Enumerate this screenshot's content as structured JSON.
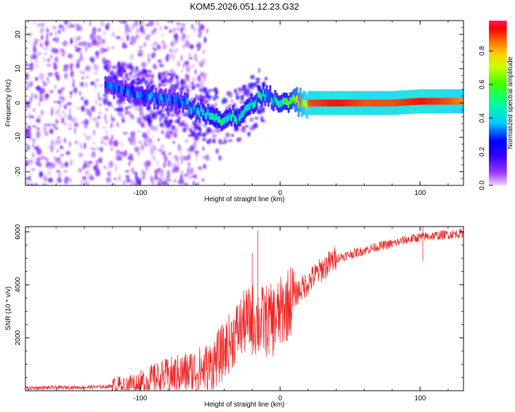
{
  "chart_data": [
    {
      "type": "heatmap",
      "title": "KOM5.2026.051.12.23.G32",
      "xlabel": "Height of straight line (km)",
      "ylabel": "Frequency (Hz)",
      "xlim": [
        -182,
        131
      ],
      "ylim": [
        -24,
        24
      ],
      "xticks": [
        -100,
        0,
        100
      ],
      "yticks": [
        -20,
        -10,
        0,
        10,
        20
      ],
      "colorbar": {
        "label": "Normalized spectral amplitude",
        "range": [
          0,
          0.98
        ],
        "ticks": [
          0.0,
          0.2,
          0.4,
          0.6,
          0.8
        ],
        "colormap": [
          "#ff00ff",
          "#3300ff",
          "#0000ff",
          "#00ffff",
          "#00ff00",
          "#ffff00",
          "#ff8800",
          "#ff0000"
        ]
      },
      "ridge": {
        "description": "dominant frequency track vs height",
        "x": [
          -125,
          -110,
          -95,
          -80,
          -70,
          -60,
          -50,
          -45,
          -40,
          -35,
          -30,
          -25,
          -20,
          -15,
          -10,
          -5,
          0,
          10,
          20,
          40,
          60,
          80,
          100,
          120,
          130
        ],
        "y": [
          5,
          4,
          2,
          1,
          0,
          -2,
          -4,
          -4,
          -5,
          -4,
          -4,
          -3,
          0,
          2,
          2,
          1,
          0,
          0.5,
          0,
          0,
          0,
          0,
          0.5,
          0.5,
          0.5
        ],
        "amplitude": [
          0.3,
          0.3,
          0.35,
          0.3,
          0.35,
          0.4,
          0.45,
          0.5,
          0.45,
          0.45,
          0.45,
          0.5,
          0.5,
          0.45,
          0.4,
          0.45,
          0.5,
          0.7,
          0.9,
          0.95,
          0.9,
          0.9,
          0.95,
          0.9,
          0.85
        ]
      }
    },
    {
      "type": "line",
      "xlabel": "Height of straight line (km)",
      "ylabel": "SNR (10 * v/v)",
      "xlim": [
        -182,
        131
      ],
      "ylim": [
        0,
        6200
      ],
      "xticks": [
        -100,
        0,
        100
      ],
      "yticks": [
        2000,
        4000,
        6000
      ],
      "color": "#ee2222",
      "series": [
        {
          "name": "SNR",
          "x": [
            -182,
            -160,
            -140,
            -125,
            -110,
            -100,
            -90,
            -80,
            -70,
            -60,
            -50,
            -45,
            -40,
            -35,
            -30,
            -25,
            -20,
            -15,
            -10,
            -5,
            0,
            10,
            20,
            30,
            40,
            50,
            60,
            70,
            80,
            90,
            100,
            110,
            120,
            131
          ],
          "y": [
            100,
            120,
            130,
            150,
            250,
            300,
            450,
            550,
            650,
            750,
            900,
            1200,
            1500,
            1900,
            2300,
            2600,
            2700,
            2600,
            2650,
            2650,
            2900,
            3600,
            4100,
            4600,
            5000,
            5150,
            5300,
            5450,
            5550,
            5700,
            5800,
            5850,
            5900,
            5950
          ]
        }
      ],
      "spikes": [
        {
          "x": -16,
          "y": 6050
        },
        {
          "x": -20,
          "y": 5200
        },
        {
          "x": 102,
          "y": 6200
        },
        {
          "x": 102,
          "y": 4900
        }
      ]
    }
  ]
}
